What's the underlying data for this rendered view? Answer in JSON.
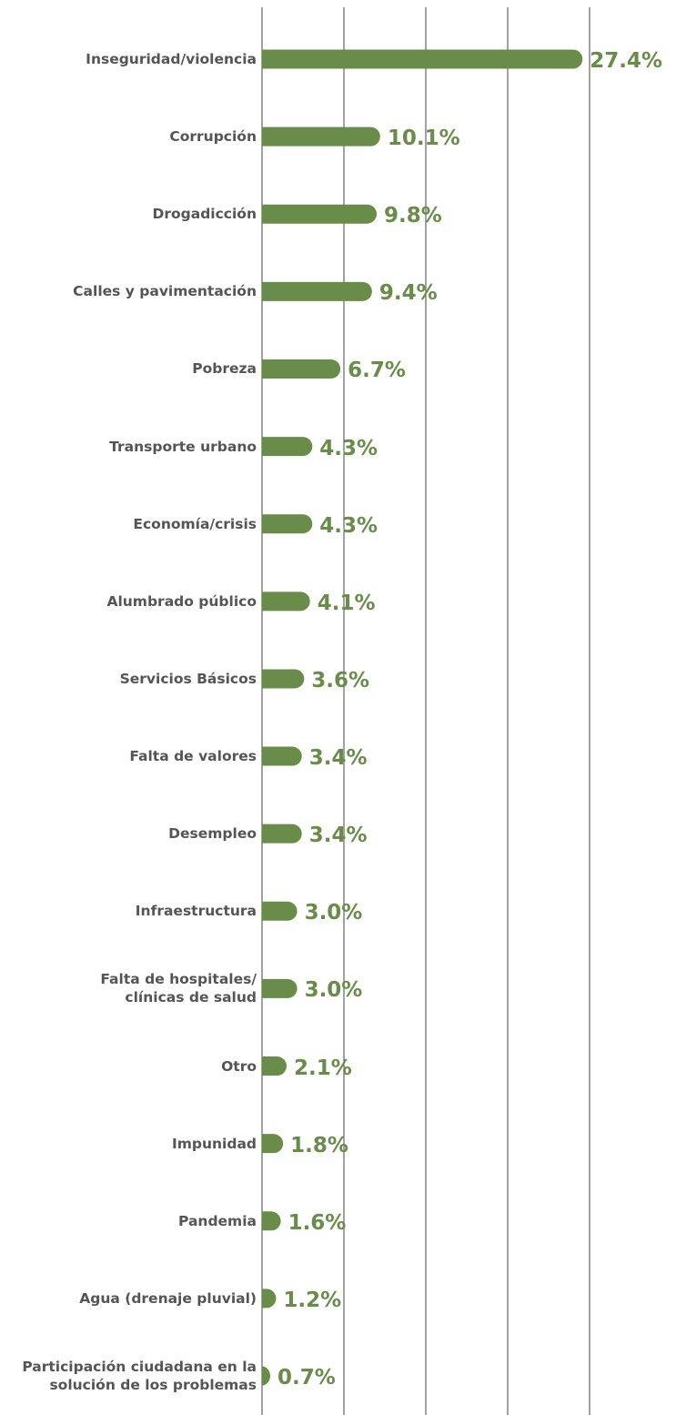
{
  "chart_data": {
    "type": "barh",
    "categories": [
      "Inseguridad/violencia",
      "Corrupción",
      "Drogadicción",
      "Calles y pavimentación",
      "Pobreza",
      "Transporte urbano",
      "Economía/crisis",
      "Alumbrado público",
      "Servicios Básicos",
      "Falta de valores",
      "Desempleo",
      "Infraestructura",
      "Falta de hospitales/\nclínicas de salud",
      "Otro",
      "Impunidad",
      "Pandemia",
      "Agua (drenaje pluvial)",
      "Participación ciudadana en la\nsolución de los problemas"
    ],
    "values": [
      27.4,
      10.1,
      9.8,
      9.4,
      6.7,
      4.3,
      4.3,
      4.1,
      3.6,
      3.4,
      3.4,
      3.0,
      3.0,
      2.1,
      1.8,
      1.6,
      1.2,
      0.7
    ],
    "value_labels": [
      "27.4%",
      "10.1%",
      "9.8%",
      "9.4%",
      "6.7%",
      "4.3%",
      "4.3%",
      "4.1%",
      "3.6%",
      "3.4%",
      "3.4%",
      "3.0%",
      "3.0%",
      "2.1%",
      "1.8%",
      "1.6%",
      "1.2%",
      "0.7%"
    ],
    "color": "#6a8c4b",
    "xlim": [
      0,
      28
    ],
    "xticks": [
      0,
      7,
      14,
      21,
      28
    ],
    "grid": true
  }
}
